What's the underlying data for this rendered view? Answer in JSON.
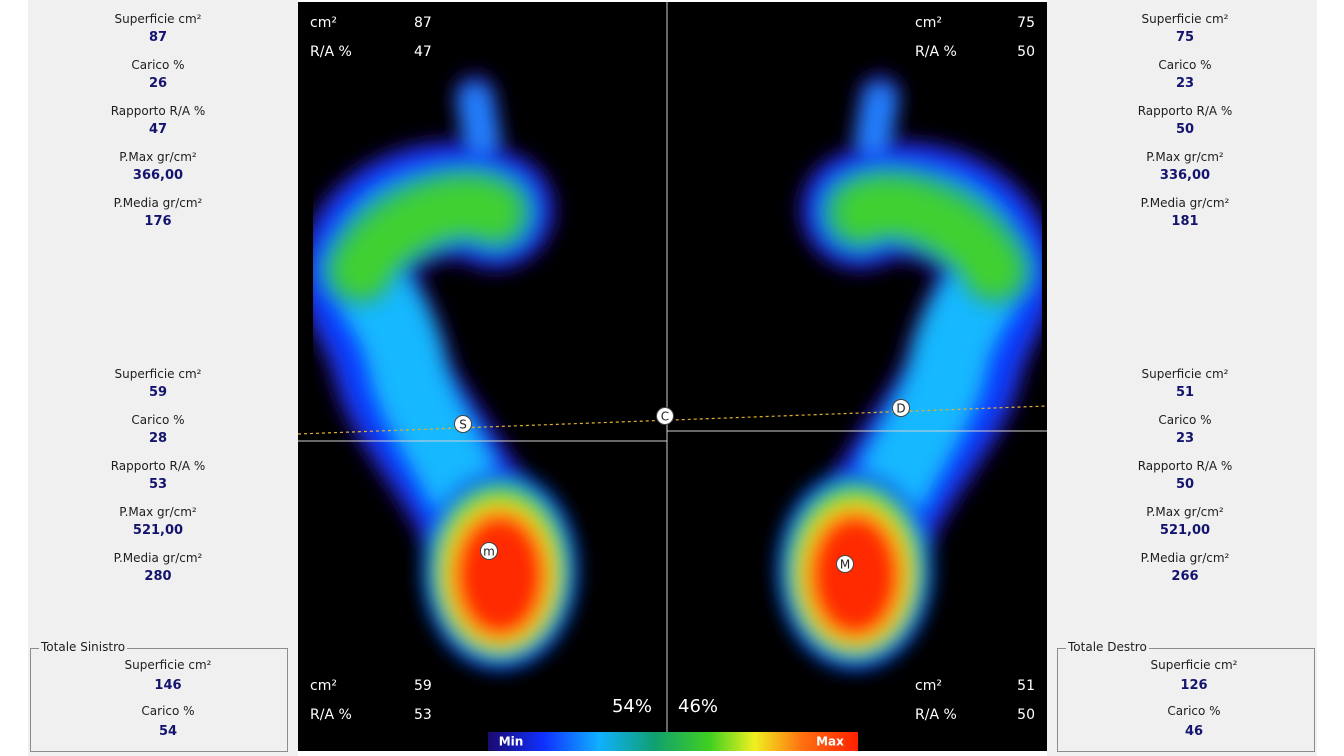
{
  "left_panel": {
    "forefoot": [
      {
        "label": "Superficie cm²",
        "value": 87
      },
      {
        "label": "Carico %",
        "value": 26
      },
      {
        "label": "Rapporto R/A %",
        "value": 47
      },
      {
        "label": "P.Max gr/cm²",
        "value": "366,00"
      },
      {
        "label": "P.Media gr/cm²",
        "value": 176
      }
    ],
    "rearfoot": [
      {
        "label": "Superficie cm²",
        "value": 59
      },
      {
        "label": "Carico %",
        "value": 28
      },
      {
        "label": "Rapporto R/A %",
        "value": 53
      },
      {
        "label": "P.Max gr/cm²",
        "value": "521,00"
      },
      {
        "label": "P.Media gr/cm²",
        "value": 280
      }
    ],
    "total": {
      "title": "Totale Sinistro",
      "items": [
        {
          "label": "Superficie cm²",
          "value": 146
        },
        {
          "label": "Carico %",
          "value": 54
        }
      ]
    }
  },
  "right_panel": {
    "forefoot": [
      {
        "label": "Superficie cm²",
        "value": 75
      },
      {
        "label": "Carico %",
        "value": 23
      },
      {
        "label": "Rapporto R/A %",
        "value": 50
      },
      {
        "label": "P.Max gr/cm²",
        "value": "336,00"
      },
      {
        "label": "P.Media gr/cm²",
        "value": 181
      }
    ],
    "rearfoot": [
      {
        "label": "Superficie cm²",
        "value": 51
      },
      {
        "label": "Carico %",
        "value": 23
      },
      {
        "label": "Rapporto R/A %",
        "value": 50
      },
      {
        "label": "P.Max gr/cm²",
        "value": "521,00"
      },
      {
        "label": "P.Media gr/cm²",
        "value": 266
      }
    ],
    "total": {
      "title": "Totale Destro",
      "items": [
        {
          "label": "Superficie cm²",
          "value": 126
        },
        {
          "label": "Carico %",
          "value": 46
        }
      ]
    }
  },
  "image": {
    "quadrants": {
      "top_left": [
        {
          "label": "cm²",
          "value": 87
        },
        {
          "label": "R/A %",
          "value": 47
        }
      ],
      "top_right": [
        {
          "label": "cm²",
          "value": 75
        },
        {
          "label": "R/A %",
          "value": 50
        }
      ],
      "bottom_left": [
        {
          "label": "cm²",
          "value": 59
        },
        {
          "label": "R/A %",
          "value": 53
        }
      ],
      "bottom_right": [
        {
          "label": "cm²",
          "value": 51
        },
        {
          "label": "R/A %",
          "value": 50
        }
      ]
    },
    "load_left": "54%",
    "load_right": "46%",
    "markers": [
      "S",
      "C",
      "D",
      "m",
      "M"
    ],
    "scale": {
      "min": "Min",
      "max": "Max"
    }
  }
}
